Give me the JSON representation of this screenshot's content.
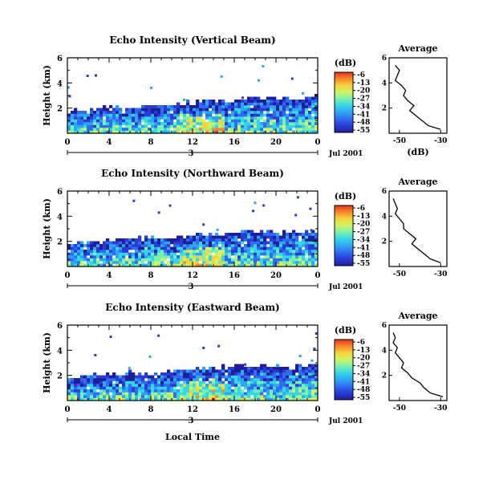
{
  "colors": {
    "scale": [
      "#1d1f9a",
      "#2a3bd6",
      "#2f6df0",
      "#2fa6f4",
      "#34d6e8",
      "#7af0b0",
      "#cff564",
      "#f6d43a",
      "#f68a2c",
      "#e8311c"
    ]
  },
  "common": {
    "time_ticks": [
      "0",
      "4",
      "8",
      "12",
      "16",
      "20",
      "0"
    ],
    "height_ticks": [
      "6",
      "4",
      "2"
    ],
    "height_label": "Height (km)",
    "date_label": "Jul 2001",
    "day_marker": "3",
    "colorbar_unit": "(dB)",
    "colorbar_ticks": [
      "-6",
      "-13",
      "-20",
      "-27",
      "-34",
      "-41",
      "-48",
      "-55"
    ],
    "profile_title": "Average",
    "profile_xlabel": "(dB)",
    "profile_xticks": [
      "-50",
      "-30"
    ],
    "profile_yticks": [
      "6",
      "4",
      "2"
    ],
    "xlabel": "Local Time"
  },
  "chart_data": [
    {
      "type": "heatmap",
      "title": "Echo Intensity (Vertical Beam)",
      "x_range_hours": [
        0,
        24
      ],
      "y_range_km": [
        0,
        6
      ],
      "color_range_db": [
        -55,
        -6
      ],
      "layer_top_km": [
        1.7,
        1.7,
        1.8,
        1.9,
        2.0,
        1.9,
        1.9,
        2.0,
        2.1,
        2.0,
        2.2,
        2.3,
        2.4,
        2.5,
        2.4,
        2.5,
        2.6,
        2.7,
        2.6,
        2.7,
        2.6,
        2.7,
        2.6,
        2.7,
        2.8
      ],
      "profile": {
        "height_km": [
          0.3,
          0.6,
          1.0,
          1.4,
          1.8,
          2.2,
          2.6,
          3.0,
          3.4,
          3.8,
          4.2,
          4.6,
          5.0,
          5.4
        ],
        "db": [
          -30,
          -36,
          -39,
          -42,
          -45,
          -43,
          -46,
          -48,
          -47,
          -49,
          -52,
          -51,
          -50,
          -52
        ]
      }
    },
    {
      "type": "heatmap",
      "title": "Echo Intensity (Northward Beam)",
      "x_range_hours": [
        0,
        24
      ],
      "y_range_km": [
        0,
        6
      ],
      "color_range_db": [
        -55,
        -6
      ],
      "layer_top_km": [
        1.8,
        1.8,
        1.8,
        1.9,
        2.0,
        2.0,
        2.1,
        2.1,
        2.2,
        2.1,
        2.2,
        2.3,
        2.4,
        2.5,
        2.5,
        2.6,
        2.6,
        2.7,
        2.6,
        2.7,
        2.7,
        2.6,
        2.7,
        2.6,
        2.7
      ],
      "profile": {
        "height_km": [
          0.3,
          0.6,
          1.0,
          1.4,
          1.8,
          2.2,
          2.6,
          3.0,
          3.4,
          3.8,
          4.2,
          4.6,
          5.0,
          5.4
        ],
        "db": [
          -30,
          -35,
          -38,
          -41,
          -44,
          -42,
          -45,
          -48,
          -48,
          -50,
          -52,
          -51,
          -52,
          -53
        ]
      }
    },
    {
      "type": "heatmap",
      "title": "Echo Intensity (Eastward Beam)",
      "x_range_hours": [
        0,
        24
      ],
      "y_range_km": [
        0,
        6
      ],
      "color_range_db": [
        -55,
        -6
      ],
      "layer_top_km": [
        1.7,
        1.8,
        1.9,
        2.0,
        2.0,
        2.0,
        2.1,
        2.1,
        2.1,
        2.1,
        2.2,
        2.3,
        2.4,
        2.5,
        2.5,
        2.6,
        2.7,
        2.7,
        2.6,
        2.7,
        2.6,
        2.5,
        2.6,
        2.7,
        2.8
      ],
      "profile": {
        "height_km": [
          0.3,
          0.6,
          1.0,
          1.4,
          1.8,
          2.2,
          2.6,
          3.0,
          3.4,
          3.8,
          4.2,
          4.6,
          5.0,
          5.4
        ],
        "db": [
          -29,
          -35,
          -38,
          -40,
          -44,
          -46,
          -49,
          -48,
          -50,
          -52,
          -51,
          -53,
          -52,
          -53
        ]
      }
    }
  ]
}
